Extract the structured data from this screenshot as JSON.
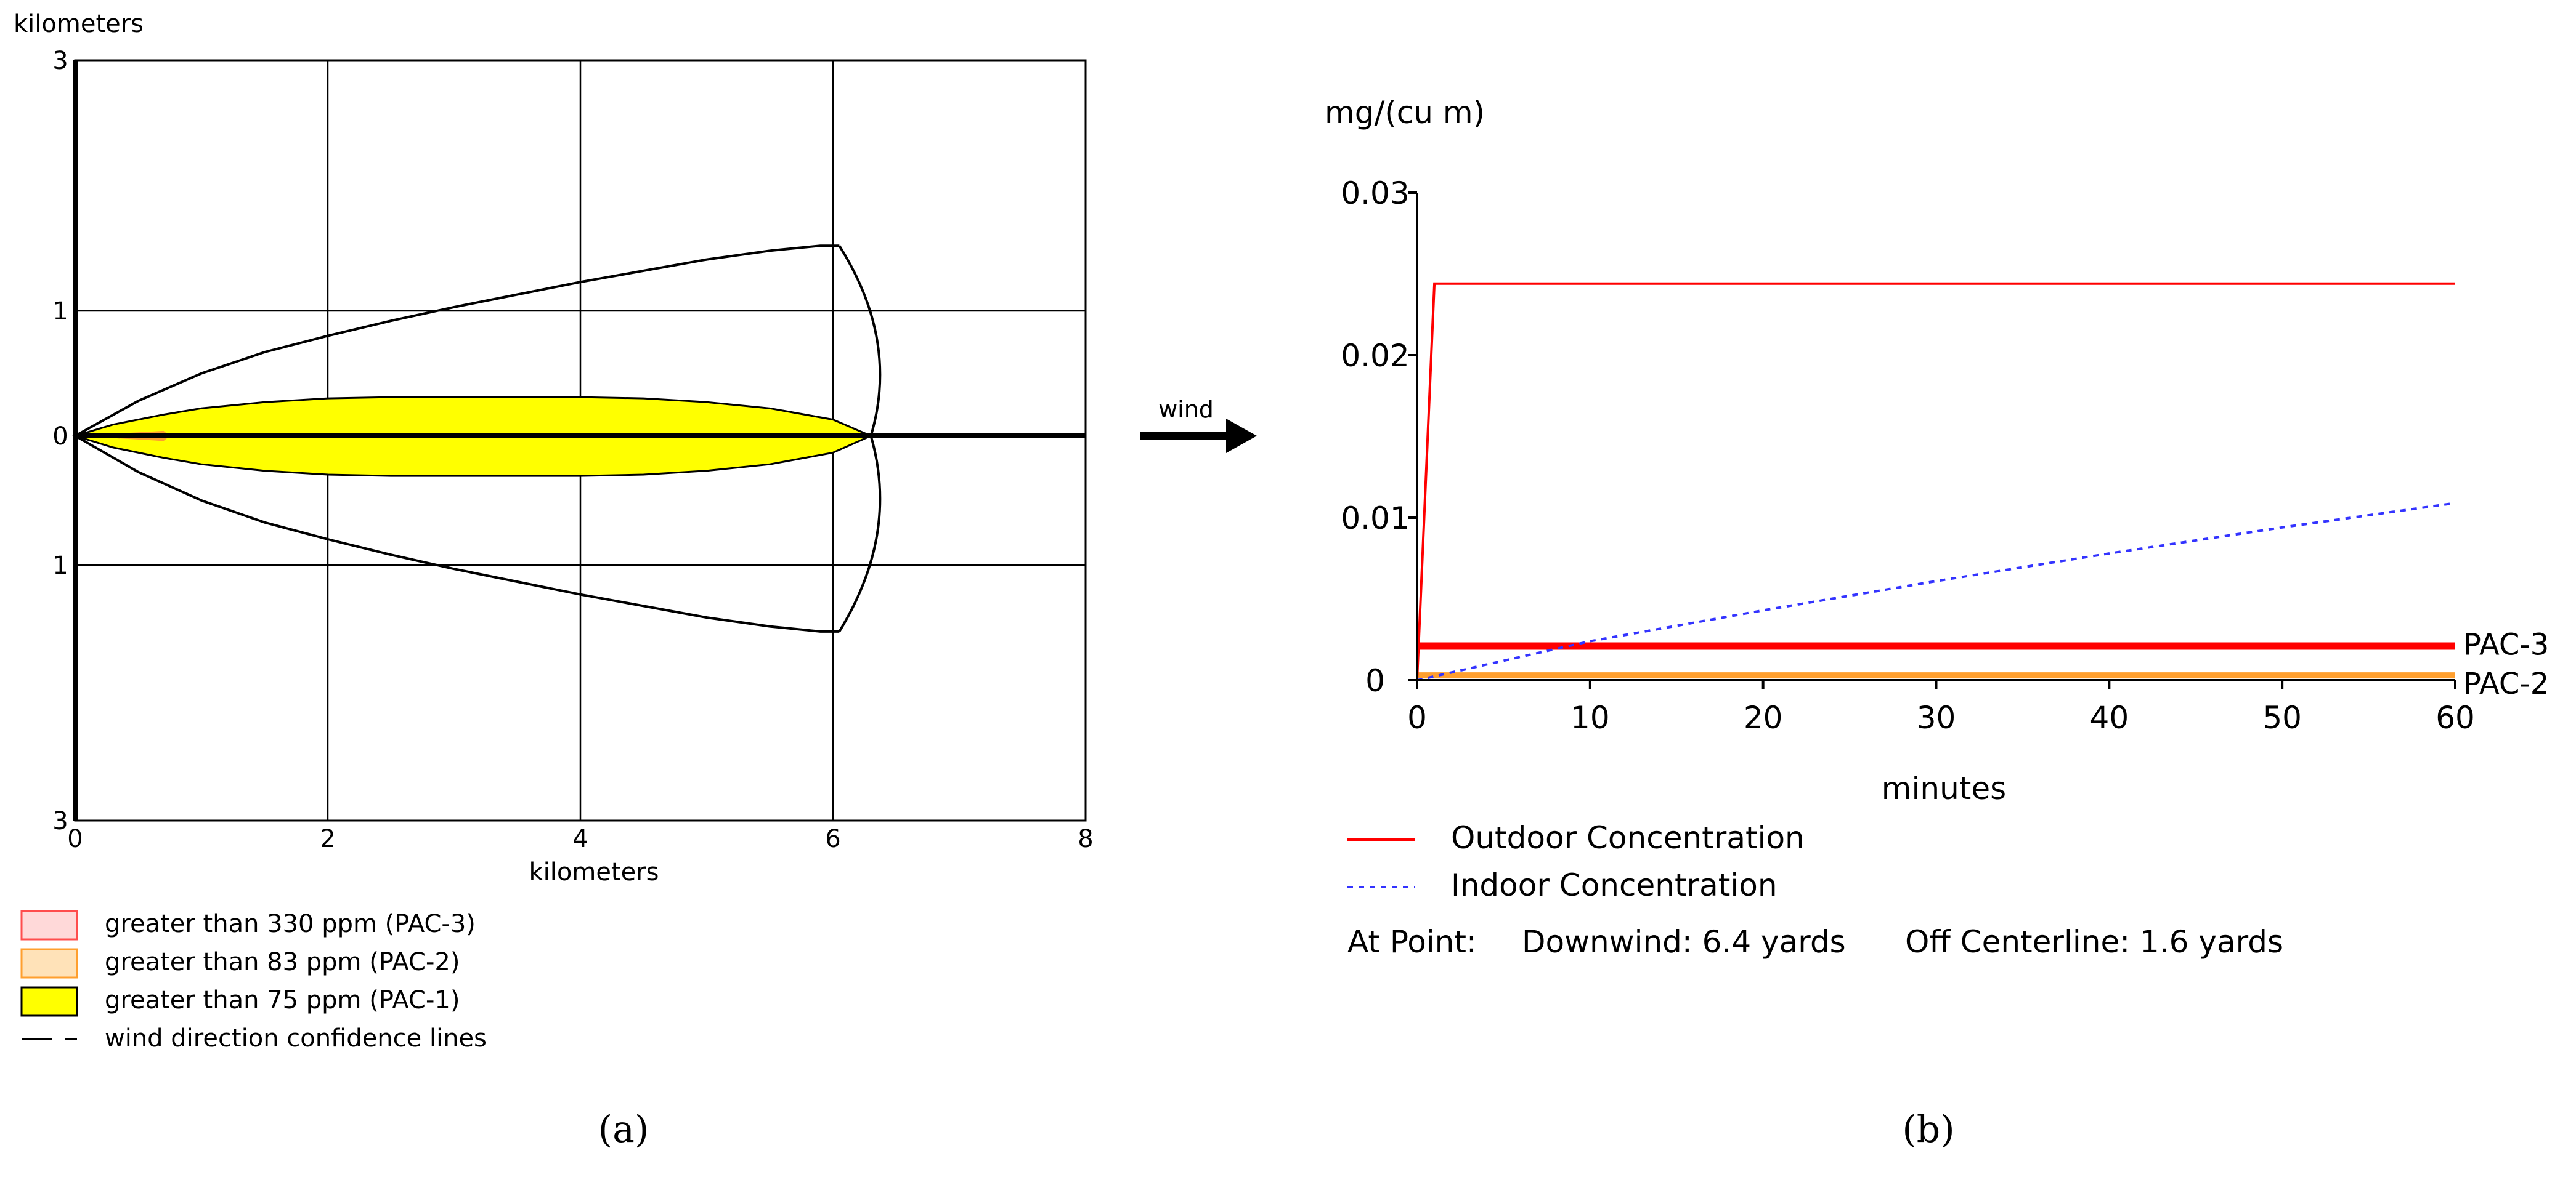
{
  "chart_data": [
    {
      "panel": "(a)",
      "type": "area",
      "xlabel": "kilometers",
      "ylabel": "kilometers",
      "xlim": [
        0,
        8
      ],
      "ylim": [
        -3,
        3
      ],
      "x_ticks": [
        "0",
        "2",
        "4",
        "6",
        "8"
      ],
      "y_ticks": [
        "3",
        "1",
        "0",
        "1",
        "3"
      ],
      "y_tick_values": [
        3,
        1,
        0,
        -1,
        -3
      ],
      "grid": true,
      "colors": {
        "pac3": "#ff4d4d",
        "pac2": "#ff9f2e",
        "pac1": "#ffff00",
        "confidence": "#000000"
      },
      "pac1_zone_halfwidth": {
        "x": [
          0,
          0.3,
          0.7,
          1.0,
          1.5,
          2.0,
          2.5,
          3.0,
          3.5,
          4.0,
          4.5,
          5.0,
          5.5,
          6.0,
          6.3
        ],
        "y": [
          0,
          0.09,
          0.17,
          0.22,
          0.27,
          0.3,
          0.31,
          0.31,
          0.31,
          0.31,
          0.3,
          0.27,
          0.22,
          0.13,
          0
        ]
      },
      "confidence_halfwidth": {
        "x": [
          0,
          0.5,
          1.0,
          1.5,
          2.0,
          2.5,
          3.0,
          3.5,
          4.0,
          4.5,
          5.0,
          5.5,
          5.9,
          6.05
        ],
        "y": [
          0,
          0.28,
          0.5,
          0.67,
          0.8,
          0.92,
          1.03,
          1.13,
          1.23,
          1.32,
          1.41,
          1.48,
          1.52,
          1.52
        ]
      },
      "confidence_arc": {
        "x_edge": 6.05,
        "x_center": 6.3,
        "halfwidth": 1.52
      },
      "legend": {
        "placement": "bottom",
        "entries": [
          {
            "label": "greater than 330 ppm (PAC-3)",
            "color": "#ff4d4d"
          },
          {
            "label": "greater than 83 ppm (PAC-2)",
            "color": "#ff9f2e"
          },
          {
            "label": "greater than 75 ppm (PAC-1)",
            "color": "#ffff00"
          },
          {
            "label": "wind direction confidence lines",
            "color": "#000000"
          }
        ]
      }
    },
    {
      "panel": "(b)",
      "type": "line",
      "xlabel": "minutes",
      "ylabel": "mg/(cu m)",
      "xlim": [
        0,
        60
      ],
      "ylim": [
        0,
        0.03
      ],
      "x_ticks": [
        "0",
        "10",
        "20",
        "30",
        "40",
        "50",
        "60"
      ],
      "x_tick_values": [
        0,
        10,
        20,
        30,
        40,
        50,
        60
      ],
      "y_ticks": [
        "0",
        "0.01",
        "0.02",
        "0.03"
      ],
      "y_tick_values": [
        0,
        0.01,
        0.02,
        0.03
      ],
      "grid": false,
      "series": [
        {
          "name": "Outdoor Concentration",
          "color": "#ff0000",
          "style": "solid",
          "x": [
            0,
            1,
            60
          ],
          "y": [
            0,
            0.0244,
            0.0244
          ]
        },
        {
          "name": "Indoor Concentration",
          "color": "#3333ff",
          "style": "dotted",
          "x": [
            0,
            10,
            20,
            30,
            40,
            50,
            60
          ],
          "y": [
            0,
            0.0024,
            0.0043,
            0.0061,
            0.0078,
            0.0094,
            0.0109
          ]
        }
      ],
      "thresholds": [
        {
          "name": "PAC-3",
          "value": 0.0021,
          "color": "#ff0000"
        },
        {
          "name": "PAC-2",
          "value": 0.0003,
          "color": "#ff9f2e"
        }
      ],
      "legend": {
        "placement": "bottom-left",
        "entries": [
          {
            "label": "Outdoor Concentration",
            "color": "#ff0000",
            "style": "solid"
          },
          {
            "label": "Indoor Concentration",
            "color": "#3333ff",
            "style": "dotted"
          }
        ]
      },
      "footer": {
        "label": "At Point:",
        "downwind": "Downwind: 6.4 yards",
        "off_centerline": "Off Centerline: 1.6 yards"
      }
    }
  ],
  "wind_label": "wind",
  "panel_labels": {
    "a": "(a)",
    "b": "(b)"
  }
}
